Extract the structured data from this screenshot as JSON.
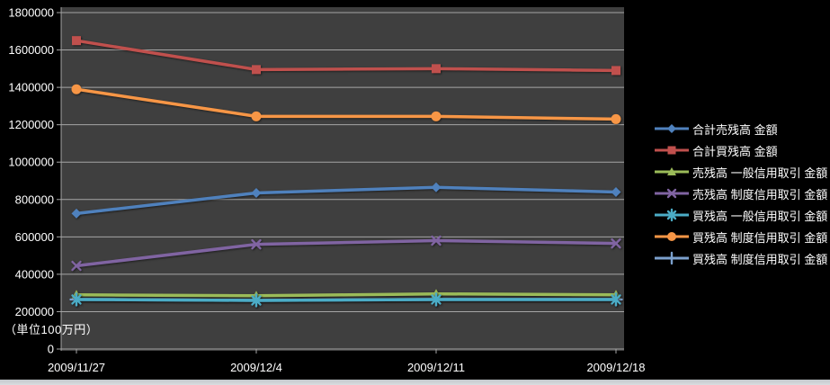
{
  "chart_data": {
    "type": "line",
    "title": "",
    "unit_label": "（単位100万円）",
    "categories": [
      "2009/11/27",
      "2009/12/4",
      "2009/12/11",
      "2009/12/18"
    ],
    "y_axis": {
      "min": 0,
      "max": 1800000,
      "step": 200000,
      "ticks": [
        "0",
        "200000",
        "400000",
        "600000",
        "800000",
        "1000000",
        "1200000",
        "1400000",
        "1600000",
        "1800000"
      ]
    },
    "grid": true,
    "legend_position": "right",
    "series": [
      {
        "name": "合計売残高 金額",
        "color": "#4F81BD",
        "marker": "diamond",
        "values": [
          725000,
          835000,
          865000,
          840000
        ]
      },
      {
        "name": "合計買残高 金額",
        "color": "#C0504D",
        "marker": "square",
        "values": [
          1650000,
          1495000,
          1500000,
          1490000
        ]
      },
      {
        "name": "売残高 一般信用取引 金額",
        "color": "#9BBB59",
        "marker": "triangle",
        "values": [
          290000,
          285000,
          295000,
          290000
        ]
      },
      {
        "name": "売残高 制度信用取引 金額",
        "color": "#8064A2",
        "marker": "x",
        "values": [
          445000,
          560000,
          580000,
          565000
        ]
      },
      {
        "name": "買残高 一般信用取引 金額",
        "color": "#4BACC6",
        "marker": "star",
        "values": [
          265000,
          260000,
          265000,
          265000
        ]
      },
      {
        "name": "買残高 制度信用取引 金額",
        "color": "#F79646",
        "marker": "circle",
        "values": [
          1390000,
          1245000,
          1245000,
          1230000
        ]
      },
      {
        "name": "買残高 制度信用取引 金額",
        "color": "#7BA0CD",
        "marker": "plus",
        "values": [
          265000,
          260000,
          265000,
          265000
        ]
      }
    ],
    "colors": {
      "page_bg": "#000000",
      "plot_bg": "#3F3F3F",
      "grid": "#A6A6A6",
      "axis_text": "#FFFFFF"
    }
  }
}
